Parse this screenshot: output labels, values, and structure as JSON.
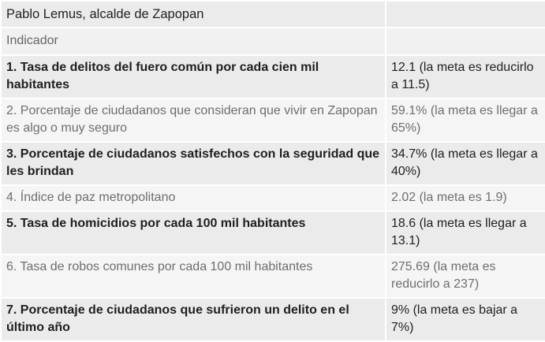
{
  "table": {
    "title": "Pablo Lemus, alcalde de Zapopan",
    "title_right": "",
    "subheader": "Indicador",
    "subheader_right": "",
    "rows": [
      {
        "indicator": "1. Tasa de delitos del fuero común por cada cien mil habitantes",
        "value": "12.1 (la meta es reducirlo a 11.5)"
      },
      {
        "indicator": "2. Porcentaje de ciudadanos que consideran que vivir en Zapopan es algo o muy seguro",
        "value": "59.1% (la meta es llegar a 65%)"
      },
      {
        "indicator": "3. Porcentaje de ciudadanos satisfechos con la seguridad que les brindan",
        "value": "34.7% (la meta es llegar a 40%)"
      },
      {
        "indicator": "4. Índice de paz metropolitano",
        "value": "2.02 (la meta es 1.9)"
      },
      {
        "indicator": "5. Tasa de homicidios por cada 100 mil habitantes",
        "value": "18.6 (la meta es llegar a 13.1)"
      },
      {
        "indicator": "6. Tasa de robos comunes por cada 100 mil habitantes",
        "value": "275.69 (la meta es reducirlo a 237)"
      },
      {
        "indicator": "7. Porcentaje de ciudadanos que sufrieron un delito en el último año",
        "value": "9% (la meta es bajar a 7%)"
      }
    ]
  }
}
